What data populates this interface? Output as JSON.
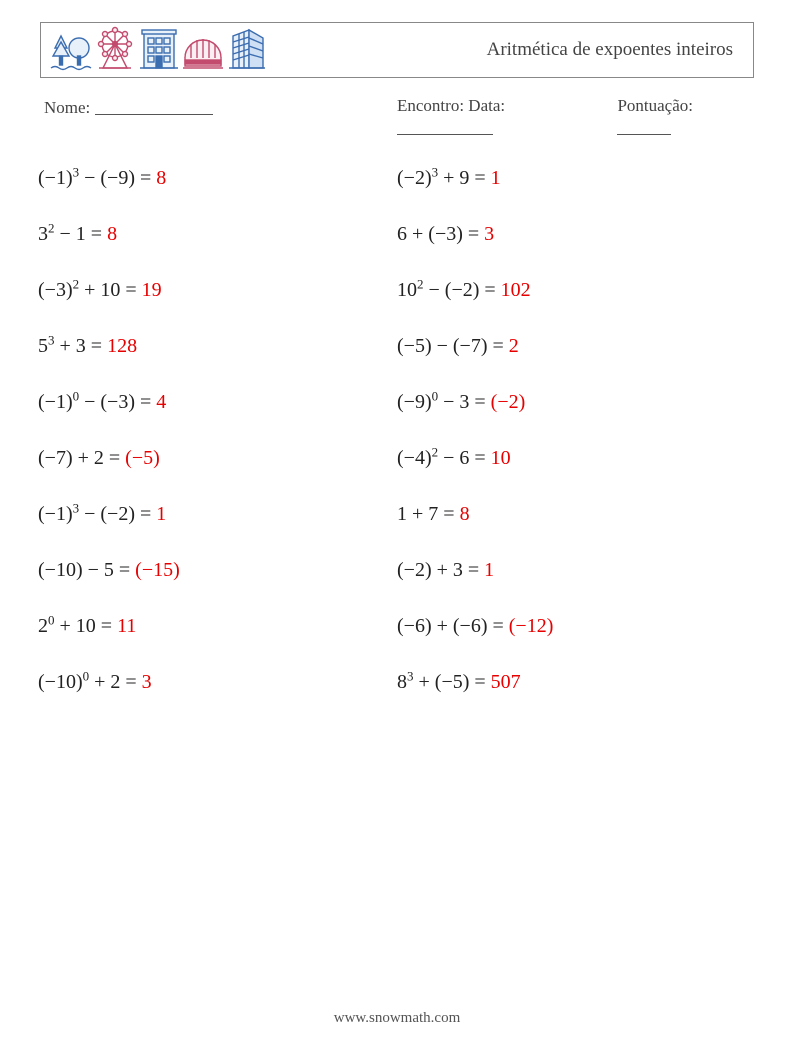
{
  "header": {
    "title": "Aritmética de expoentes inteiros"
  },
  "meta": {
    "nome_label": "Nome:",
    "encontro_label": "Encontro: Data:",
    "pontuacao_label": "Pontuação:",
    "blank_widths": {
      "nome": 118,
      "data": 96,
      "pontuacao": 54
    }
  },
  "colors": {
    "text": "#333333",
    "answer": "#e60000",
    "border": "#888888",
    "background": "#ffffff"
  },
  "typography": {
    "title_fontsize": 19,
    "meta_fontsize": 17,
    "problem_fontsize": 20,
    "footer_fontsize": 15
  },
  "icons": [
    {
      "name": "tree-icon",
      "stroke": "#3b6db0",
      "fill": "#e8f0fa"
    },
    {
      "name": "ferris-wheel-icon",
      "stroke": "#c24b6e",
      "fill": "#fbeff3"
    },
    {
      "name": "building-icon",
      "stroke": "#3b6db0",
      "fill": "#e8f0fa"
    },
    {
      "name": "bridge-icon",
      "stroke": "#c24b6e",
      "fill": "#fbeff3"
    },
    {
      "name": "skyscraper-icon",
      "stroke": "#3b6db0",
      "fill": "#e8f0fa"
    }
  ],
  "problems": {
    "left": [
      {
        "base": "(−1)",
        "exp": "3",
        "op": "−",
        "operand": "(−9)",
        "answer": "8"
      },
      {
        "base": "3",
        "exp": "2",
        "op": "−",
        "operand": "1",
        "answer": "8"
      },
      {
        "base": "(−3)",
        "exp": "2",
        "op": "+",
        "operand": "10",
        "answer": "19"
      },
      {
        "base": "5",
        "exp": "3",
        "op": "+",
        "operand": "3",
        "answer": "128"
      },
      {
        "base": "(−1)",
        "exp": "0",
        "op": "−",
        "operand": "(−3)",
        "answer": "4"
      },
      {
        "base": "(−7)",
        "exp": "",
        "op": "+",
        "operand": "2",
        "answer": "(−5)"
      },
      {
        "base": "(−1)",
        "exp": "3",
        "op": "−",
        "operand": "(−2)",
        "answer": "1"
      },
      {
        "base": "(−10)",
        "exp": "",
        "op": "−",
        "operand": "5",
        "answer": "(−15)"
      },
      {
        "base": "2",
        "exp": "0",
        "op": "+",
        "operand": "10",
        "answer": "11"
      },
      {
        "base": "(−10)",
        "exp": "0",
        "op": "+",
        "operand": "2",
        "answer": "3"
      }
    ],
    "right": [
      {
        "base": "(−2)",
        "exp": "3",
        "op": "+",
        "operand": "9",
        "answer": "1"
      },
      {
        "base": "6",
        "exp": "",
        "op": "+",
        "operand": "(−3)",
        "answer": "3"
      },
      {
        "base": "10",
        "exp": "2",
        "op": "−",
        "operand": "(−2)",
        "answer": "102"
      },
      {
        "base": "(−5)",
        "exp": "",
        "op": "−",
        "operand": "(−7)",
        "answer": "2"
      },
      {
        "base": "(−9)",
        "exp": "0",
        "op": "−",
        "operand": "3",
        "answer": "(−2)"
      },
      {
        "base": "(−4)",
        "exp": "2",
        "op": "−",
        "operand": "6",
        "answer": "10"
      },
      {
        "base": "1",
        "exp": "",
        "op": "+",
        "operand": "7",
        "answer": "8"
      },
      {
        "base": "(−2)",
        "exp": "",
        "op": "+",
        "operand": "3",
        "answer": "1"
      },
      {
        "base": "(−6)",
        "exp": "",
        "op": "+",
        "operand": "(−6)",
        "answer": "(−12)"
      },
      {
        "base": "8",
        "exp": "3",
        "op": "+",
        "operand": "(−5)",
        "answer": "507"
      }
    ]
  },
  "footer": {
    "text": "www.snowmath.com"
  }
}
